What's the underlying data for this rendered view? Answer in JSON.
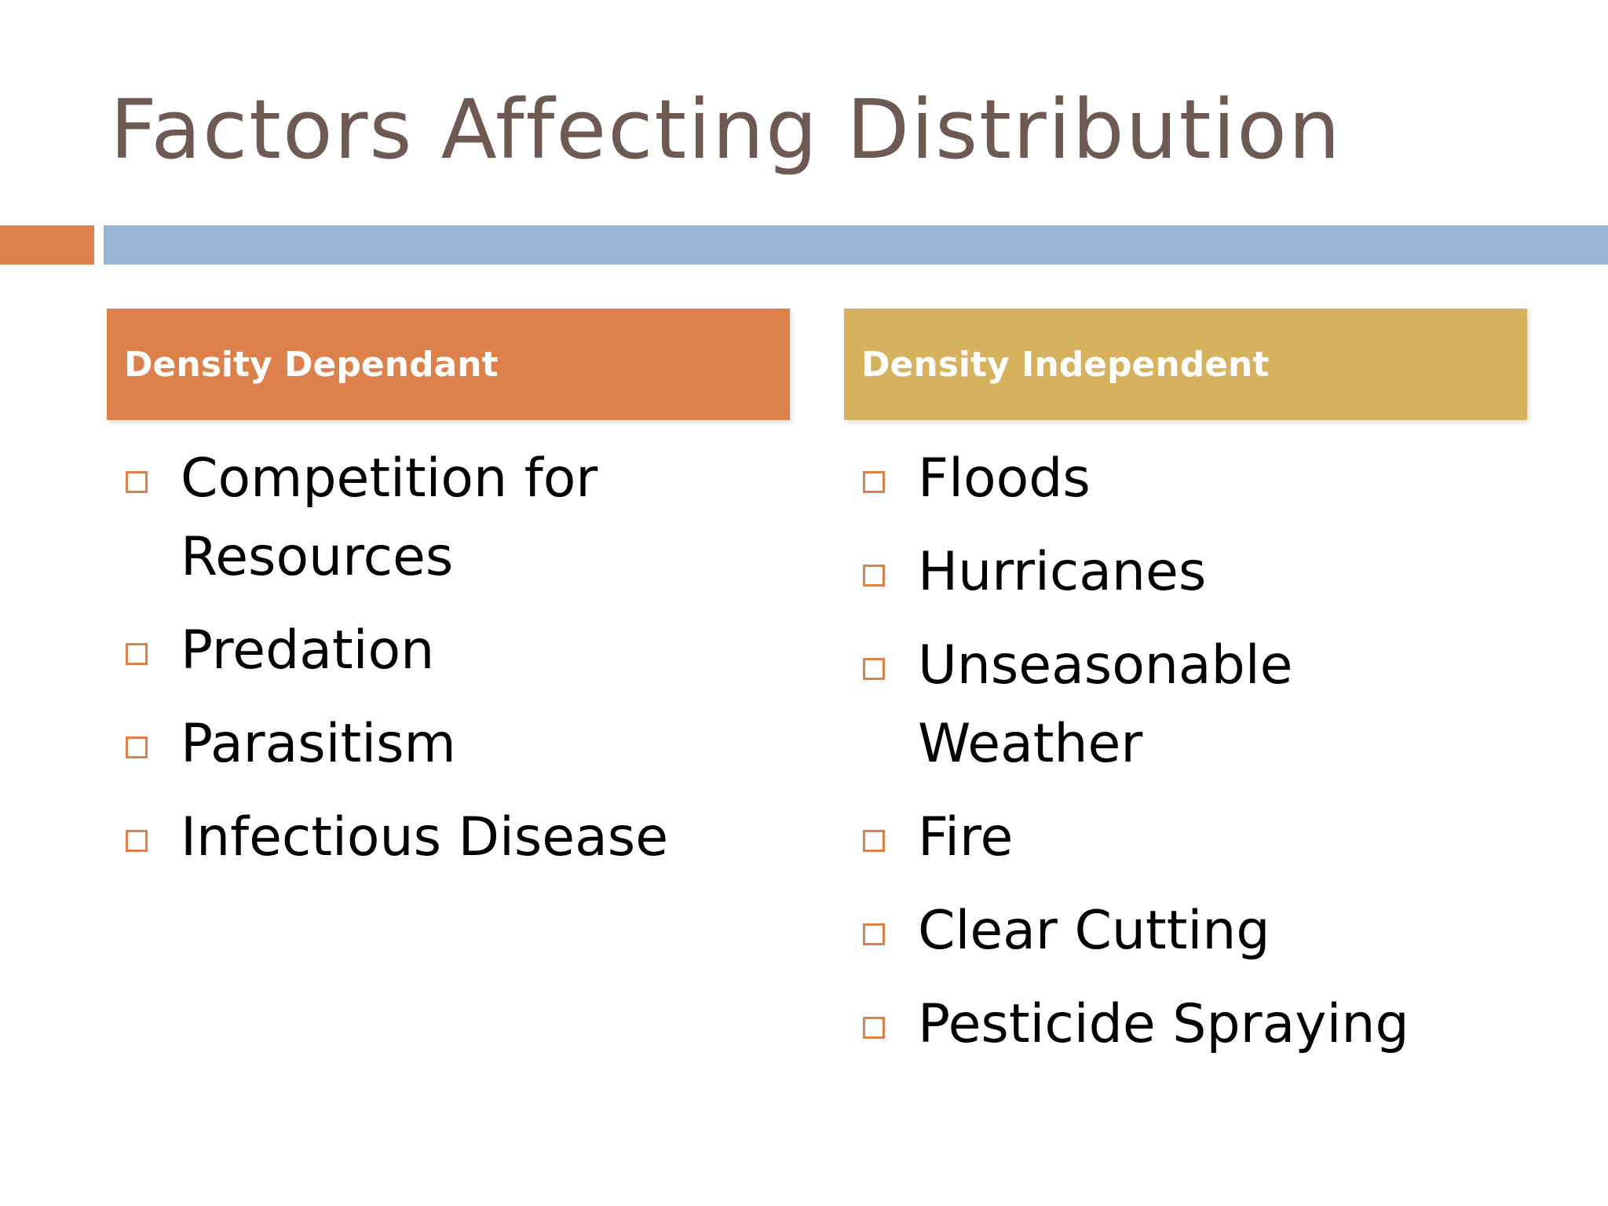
{
  "slide": {
    "title": "Factors Affecting Distribution",
    "colors": {
      "title": "#6e5a52",
      "accent_orange": "#dc814b",
      "accent_blue": "#94b6d2",
      "header_left": "#dc814b",
      "header_right": "#d6b25f"
    },
    "columns": [
      {
        "header": "Density Dependant",
        "bullet_icon": "square-bullet-icon",
        "items": [
          "Competition for Resources",
          "Predation",
          "Parasitism",
          "Infectious Disease"
        ]
      },
      {
        "header": "Density Independent",
        "bullet_icon": "square-bullet-icon",
        "items": [
          "Floods",
          "Hurricanes",
          "Unseasonable Weather",
          "Fire",
          "Clear Cutting",
          "Pesticide Spraying"
        ]
      }
    ]
  }
}
